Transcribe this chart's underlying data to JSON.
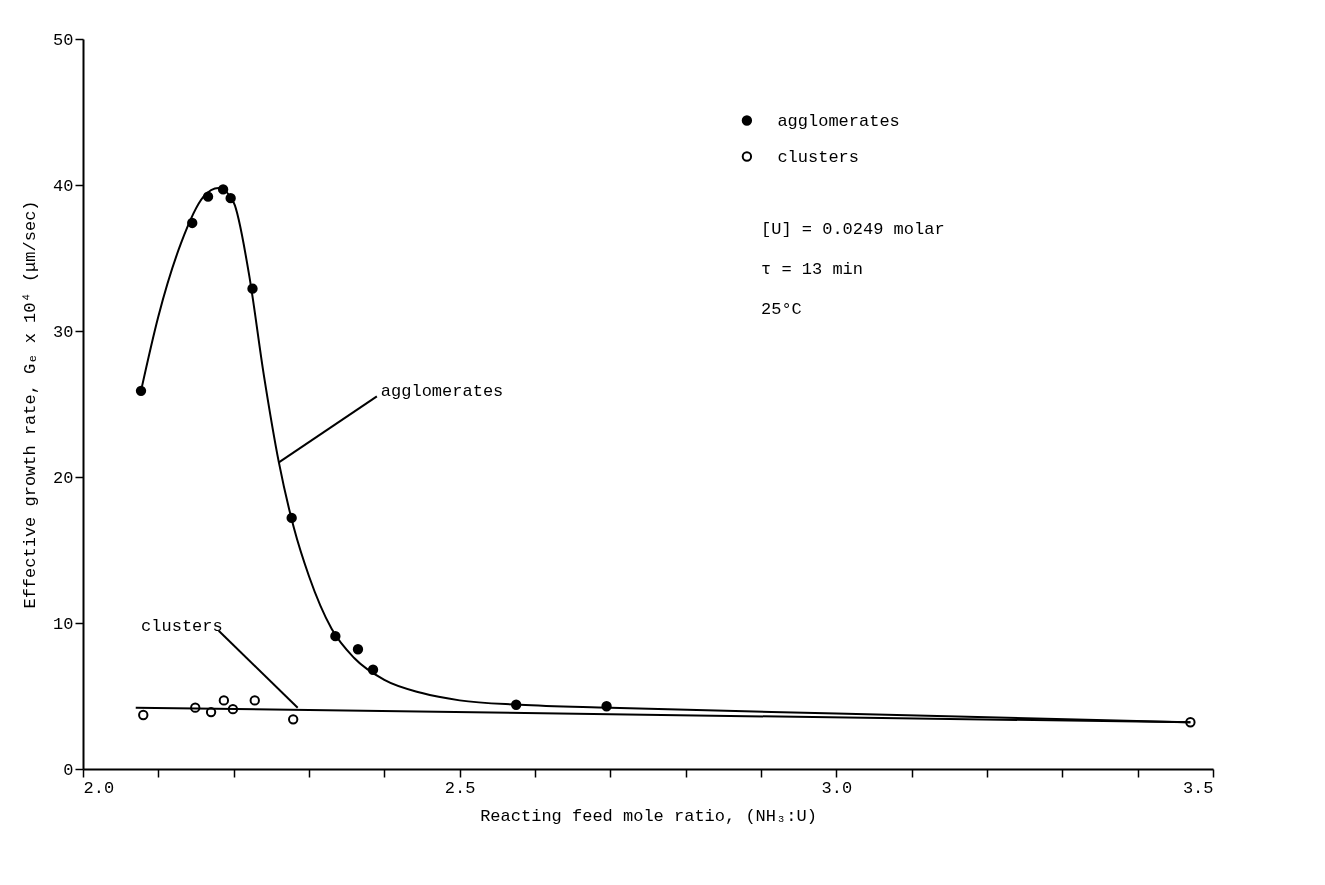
{
  "chart_data": {
    "type": "scatter",
    "xlabel": "Reacting feed mole ratio, (NH₃:U)",
    "ylabel": "Effective growth rate, Gₑ x 10⁴ (μm/sec)",
    "xlim": [
      2.0,
      3.5
    ],
    "ylim": [
      0,
      50
    ],
    "xticks": [
      {
        "value": 2.0,
        "label": "2.0"
      },
      {
        "value": 2.1,
        "label": null
      },
      {
        "value": 2.2,
        "label": null
      },
      {
        "value": 2.3,
        "label": null
      },
      {
        "value": 2.4,
        "label": null
      },
      {
        "value": 2.5,
        "label": "2.5"
      },
      {
        "value": 2.6,
        "label": null
      },
      {
        "value": 2.7,
        "label": null
      },
      {
        "value": 2.8,
        "label": null
      },
      {
        "value": 2.9,
        "label": null
      },
      {
        "value": 3.0,
        "label": "3.0"
      },
      {
        "value": 3.1,
        "label": null
      },
      {
        "value": 3.2,
        "label": null
      },
      {
        "value": 3.3,
        "label": null
      },
      {
        "value": 3.4,
        "label": null
      },
      {
        "value": 3.5,
        "label": "3.5"
      }
    ],
    "yticks": [
      0,
      10,
      20,
      30,
      40,
      50
    ],
    "grid": false,
    "legend": "top right",
    "marker": "circle",
    "series": [
      {
        "name": "agglomerates",
        "color": "#000000",
        "x": [
          2.077,
          2.145,
          2.166,
          2.186,
          2.196,
          2.225,
          2.277,
          2.335,
          2.365,
          2.385,
          2.575,
          2.695
        ],
        "values": [
          25.9,
          37.4,
          39.2,
          39.7,
          39.1,
          32.9,
          17.2,
          9.1,
          8.2,
          6.8,
          4.4,
          4.3
        ]
      },
      {
        "name": "clusters",
        "color": "#000000",
        "x": [
          2.08,
          2.149,
          2.17,
          2.187,
          2.199,
          2.228,
          2.279,
          3.47
        ],
        "values": [
          3.7,
          4.2,
          3.9,
          4.7,
          4.1,
          4.7,
          3.4,
          3.2
        ]
      },
      {
        "type": "line",
        "color": "#000000",
        "marker": "none",
        "x": [
          2.077,
          2.1,
          2.13,
          2.16,
          2.18,
          2.2,
          2.22,
          2.24,
          2.26,
          2.28,
          2.3,
          2.33,
          2.36,
          2.4,
          2.45,
          2.5,
          2.58,
          2.7,
          3.0,
          3.47
        ],
        "values": [
          25.9,
          31,
          36,
          39.2,
          39.8,
          38.8,
          34,
          27,
          21,
          16.5,
          13.2,
          9.6,
          7.6,
          6.1,
          5.2,
          4.7,
          4.4,
          4.2,
          3.8,
          3.2
        ]
      },
      {
        "type": "line",
        "color": "#000000",
        "marker": "none",
        "x": [
          2.07,
          3.47
        ],
        "values": [
          4.2,
          3.2
        ]
      }
    ],
    "annotations": [
      {
        "text": "agglomerates",
        "x": 2.26,
        "y": 21
      },
      {
        "text": "clusters",
        "x": 2.285,
        "y": 4.2
      },
      "[U] = 0.0249 molar",
      "τ = 13 min",
      "25°C"
    ]
  }
}
